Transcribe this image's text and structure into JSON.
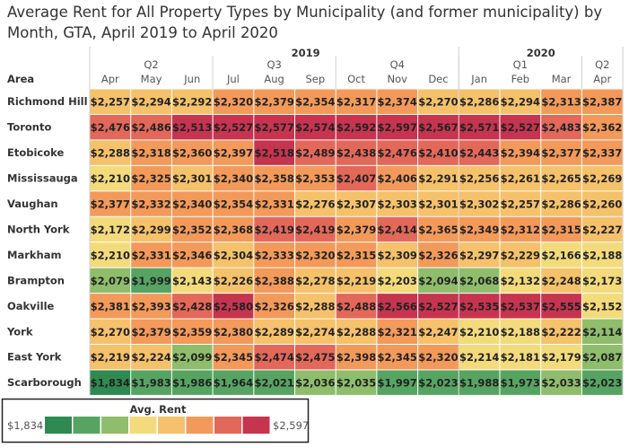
{
  "title": "Average Rent for All Property Types by Municipality (and former municipality) by Month, GTA, April 2019 to April 2020",
  "chart_data": {
    "type": "heatmap",
    "row_header": "Area",
    "years": [
      {
        "label": "2019",
        "span": [
          0,
          8
        ]
      },
      {
        "label": "2020",
        "span": [
          9,
          12
        ]
      }
    ],
    "quarters": [
      {
        "label": "Q2",
        "span": [
          0,
          2
        ]
      },
      {
        "label": "Q3",
        "span": [
          3,
          5
        ]
      },
      {
        "label": "Q4",
        "span": [
          6,
          8
        ]
      },
      {
        "label": "Q1",
        "span": [
          9,
          11
        ]
      },
      {
        "label": "Q2",
        "span": [
          12,
          12
        ]
      }
    ],
    "columns": [
      "Apr",
      "May",
      "Jun",
      "Jul",
      "Aug",
      "Sep",
      "Oct",
      "Nov",
      "Dec",
      "Jan",
      "Feb",
      "Mar",
      "Apr"
    ],
    "rows": [
      {
        "area": "Richmond Hill",
        "values": [
          "$2,257",
          "$2,294",
          "$2,292",
          "$2,320",
          "$2,379",
          "$2,354",
          "$2,317",
          "$2,374",
          "$2,270",
          "$2,286",
          "$2,294",
          "$2,313",
          "$2,387"
        ]
      },
      {
        "area": "Toronto",
        "values": [
          "$2,476",
          "$2,486",
          "$2,513",
          "$2,527",
          "$2,577",
          "$2,574",
          "$2,592",
          "$2,597",
          "$2,567",
          "$2,571",
          "$2,527",
          "$2,483",
          "$2,362"
        ]
      },
      {
        "area": "Etobicoke",
        "values": [
          "$2,288",
          "$2,318",
          "$2,360",
          "$2,397",
          "$2,518",
          "$2,489",
          "$2,438",
          "$2,476",
          "$2,410",
          "$2,443",
          "$2,394",
          "$2,377",
          "$2,337"
        ]
      },
      {
        "area": "Mississauga",
        "values": [
          "$2,210",
          "$2,325",
          "$2,301",
          "$2,340",
          "$2,358",
          "$2,353",
          "$2,407",
          "$2,406",
          "$2,291",
          "$2,256",
          "$2,261",
          "$2,265",
          "$2,269"
        ]
      },
      {
        "area": "Vaughan",
        "values": [
          "$2,377",
          "$2,332",
          "$2,340",
          "$2,354",
          "$2,331",
          "$2,276",
          "$2,307",
          "$2,303",
          "$2,301",
          "$2,302",
          "$2,257",
          "$2,286",
          "$2,260"
        ]
      },
      {
        "area": "North York",
        "values": [
          "$2,172",
          "$2,299",
          "$2,352",
          "$2,368",
          "$2,419",
          "$2,419",
          "$2,379",
          "$2,414",
          "$2,365",
          "$2,349",
          "$2,312",
          "$2,315",
          "$2,227"
        ]
      },
      {
        "area": "Markham",
        "values": [
          "$2,210",
          "$2,331",
          "$2,346",
          "$2,304",
          "$2,333",
          "$2,320",
          "$2,315",
          "$2,309",
          "$2,326",
          "$2,297",
          "$2,229",
          "$2,166",
          "$2,188"
        ]
      },
      {
        "area": "Brampton",
        "values": [
          "$2,079",
          "$1,999",
          "$2,143",
          "$2,226",
          "$2,388",
          "$2,278",
          "$2,219",
          "$2,203",
          "$2,094",
          "$2,068",
          "$2,132",
          "$2,248",
          "$2,173"
        ]
      },
      {
        "area": "Oakville",
        "values": [
          "$2,381",
          "$2,393",
          "$2,428",
          "$2,580",
          "$2,326",
          "$2,288",
          "$2,488",
          "$2,566",
          "$2,527",
          "$2,535",
          "$2,537",
          "$2,555",
          "$2,152"
        ]
      },
      {
        "area": "York",
        "values": [
          "$2,270",
          "$2,379",
          "$2,359",
          "$2,380",
          "$2,289",
          "$2,274",
          "$2,288",
          "$2,321",
          "$2,247",
          "$2,210",
          "$2,188",
          "$2,222",
          "$2,114"
        ]
      },
      {
        "area": "East York",
        "values": [
          "$2,219",
          "$2,224",
          "$2,099",
          "$2,345",
          "$2,474",
          "$2,475",
          "$2,398",
          "$2,345",
          "$2,320",
          "$2,214",
          "$2,181",
          "$2,179",
          "$2,087"
        ]
      },
      {
        "area": "Scarborough",
        "values": [
          "$1,834",
          "$1,983",
          "$1,986",
          "$1,964",
          "$2,021",
          "$2,036",
          "$2,035",
          "$1,997",
          "$2,023",
          "$1,988",
          "$1,973",
          "$2,033",
          "$2,023"
        ]
      }
    ],
    "legend": {
      "title": "Avg. Rent",
      "min_label": "$1,834",
      "max_label": "$2,597",
      "min": 1834,
      "max": 2597,
      "colors": [
        "#2e8a50",
        "#57a462",
        "#8fbd6c",
        "#f3db7c",
        "#f5c16a",
        "#f39a5a",
        "#e3685a",
        "#c73450"
      ]
    }
  }
}
